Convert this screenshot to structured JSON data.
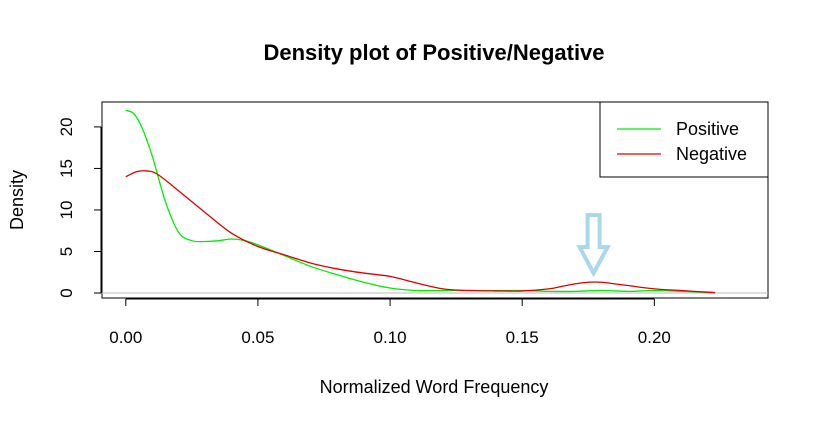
{
  "chart_data": {
    "type": "line",
    "title": "Density plot of Positive/Negative",
    "xlabel": "Normalized Word Frequency",
    "ylabel": "Density",
    "xlim": [
      -0.009,
      0.243
    ],
    "ylim": [
      -0.6,
      23.0
    ],
    "x_ticks": [
      0.0,
      0.05,
      0.1,
      0.15,
      0.2
    ],
    "x_tick_labels": [
      "0.00",
      "0.05",
      "0.10",
      "0.15",
      "0.20"
    ],
    "y_ticks": [
      0,
      5,
      10,
      15,
      20
    ],
    "y_tick_labels": [
      "0",
      "5",
      "10",
      "15",
      "20"
    ],
    "zero_line": true,
    "legend_position": "top-right",
    "series": [
      {
        "name": "Positive",
        "color": "#00ee00",
        "x": [
          0.0,
          0.003,
          0.006,
          0.01,
          0.015,
          0.02,
          0.025,
          0.03,
          0.035,
          0.04,
          0.045,
          0.05,
          0.06,
          0.07,
          0.08,
          0.09,
          0.1,
          0.11,
          0.12,
          0.13,
          0.14,
          0.15,
          0.16,
          0.17,
          0.18,
          0.19,
          0.2,
          0.21,
          0.22,
          0.223
        ],
        "y": [
          22.0,
          21.6,
          20.0,
          16.5,
          11.0,
          7.3,
          6.3,
          6.2,
          6.3,
          6.5,
          6.3,
          5.8,
          4.5,
          3.2,
          2.2,
          1.3,
          0.6,
          0.3,
          0.3,
          0.3,
          0.3,
          0.3,
          0.2,
          0.2,
          0.3,
          0.2,
          0.3,
          0.2,
          0.1,
          0.05
        ]
      },
      {
        "name": "Negative",
        "color": "#dd0000",
        "x": [
          0.0,
          0.004,
          0.008,
          0.012,
          0.02,
          0.03,
          0.04,
          0.05,
          0.06,
          0.07,
          0.08,
          0.09,
          0.1,
          0.11,
          0.12,
          0.13,
          0.14,
          0.15,
          0.16,
          0.165,
          0.17,
          0.175,
          0.18,
          0.185,
          0.19,
          0.2,
          0.21,
          0.22,
          0.223
        ],
        "y": [
          14.0,
          14.6,
          14.7,
          14.3,
          12.3,
          9.7,
          7.2,
          5.6,
          4.6,
          3.6,
          2.9,
          2.4,
          2.0,
          1.2,
          0.5,
          0.3,
          0.25,
          0.25,
          0.5,
          0.8,
          1.1,
          1.3,
          1.3,
          1.1,
          0.9,
          0.5,
          0.3,
          0.1,
          0.05
        ]
      }
    ],
    "annotation": {
      "type": "arrow",
      "direction": "down",
      "x": 0.177,
      "y_tip": 2.4,
      "color": "#a8d8ea"
    }
  }
}
